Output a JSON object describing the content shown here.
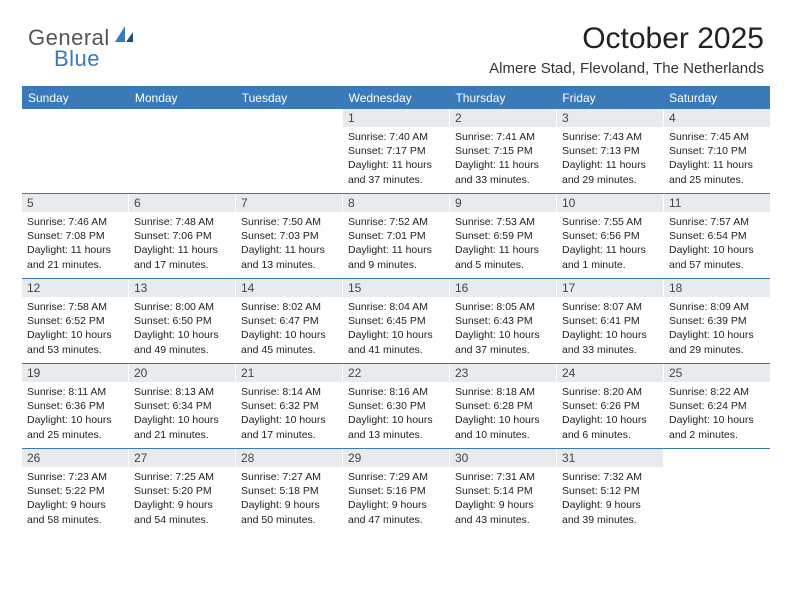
{
  "logo": {
    "text_general": "General",
    "text_blue": "Blue"
  },
  "header": {
    "month_title": "October 2025",
    "location": "Almere Stad, Flevoland, The Netherlands"
  },
  "colors": {
    "brand_blue": "#3a7ab8",
    "header_bg": "#3a7ab8",
    "header_text": "#ffffff",
    "daynum_bg": "#e8ebee",
    "body_text": "#222222",
    "page_bg": "#ffffff"
  },
  "day_headers": [
    "Sunday",
    "Monday",
    "Tuesday",
    "Wednesday",
    "Thursday",
    "Friday",
    "Saturday"
  ],
  "weeks": [
    [
      {
        "blank": true
      },
      {
        "blank": true
      },
      {
        "blank": true
      },
      {
        "day": "1",
        "sunrise": "Sunrise: 7:40 AM",
        "sunset": "Sunset: 7:17 PM",
        "daylight": "Daylight: 11 hours and 37 minutes."
      },
      {
        "day": "2",
        "sunrise": "Sunrise: 7:41 AM",
        "sunset": "Sunset: 7:15 PM",
        "daylight": "Daylight: 11 hours and 33 minutes."
      },
      {
        "day": "3",
        "sunrise": "Sunrise: 7:43 AM",
        "sunset": "Sunset: 7:13 PM",
        "daylight": "Daylight: 11 hours and 29 minutes."
      },
      {
        "day": "4",
        "sunrise": "Sunrise: 7:45 AM",
        "sunset": "Sunset: 7:10 PM",
        "daylight": "Daylight: 11 hours and 25 minutes."
      }
    ],
    [
      {
        "day": "5",
        "sunrise": "Sunrise: 7:46 AM",
        "sunset": "Sunset: 7:08 PM",
        "daylight": "Daylight: 11 hours and 21 minutes."
      },
      {
        "day": "6",
        "sunrise": "Sunrise: 7:48 AM",
        "sunset": "Sunset: 7:06 PM",
        "daylight": "Daylight: 11 hours and 17 minutes."
      },
      {
        "day": "7",
        "sunrise": "Sunrise: 7:50 AM",
        "sunset": "Sunset: 7:03 PM",
        "daylight": "Daylight: 11 hours and 13 minutes."
      },
      {
        "day": "8",
        "sunrise": "Sunrise: 7:52 AM",
        "sunset": "Sunset: 7:01 PM",
        "daylight": "Daylight: 11 hours and 9 minutes."
      },
      {
        "day": "9",
        "sunrise": "Sunrise: 7:53 AM",
        "sunset": "Sunset: 6:59 PM",
        "daylight": "Daylight: 11 hours and 5 minutes."
      },
      {
        "day": "10",
        "sunrise": "Sunrise: 7:55 AM",
        "sunset": "Sunset: 6:56 PM",
        "daylight": "Daylight: 11 hours and 1 minute."
      },
      {
        "day": "11",
        "sunrise": "Sunrise: 7:57 AM",
        "sunset": "Sunset: 6:54 PM",
        "daylight": "Daylight: 10 hours and 57 minutes."
      }
    ],
    [
      {
        "day": "12",
        "sunrise": "Sunrise: 7:58 AM",
        "sunset": "Sunset: 6:52 PM",
        "daylight": "Daylight: 10 hours and 53 minutes."
      },
      {
        "day": "13",
        "sunrise": "Sunrise: 8:00 AM",
        "sunset": "Sunset: 6:50 PM",
        "daylight": "Daylight: 10 hours and 49 minutes."
      },
      {
        "day": "14",
        "sunrise": "Sunrise: 8:02 AM",
        "sunset": "Sunset: 6:47 PM",
        "daylight": "Daylight: 10 hours and 45 minutes."
      },
      {
        "day": "15",
        "sunrise": "Sunrise: 8:04 AM",
        "sunset": "Sunset: 6:45 PM",
        "daylight": "Daylight: 10 hours and 41 minutes."
      },
      {
        "day": "16",
        "sunrise": "Sunrise: 8:05 AM",
        "sunset": "Sunset: 6:43 PM",
        "daylight": "Daylight: 10 hours and 37 minutes."
      },
      {
        "day": "17",
        "sunrise": "Sunrise: 8:07 AM",
        "sunset": "Sunset: 6:41 PM",
        "daylight": "Daylight: 10 hours and 33 minutes."
      },
      {
        "day": "18",
        "sunrise": "Sunrise: 8:09 AM",
        "sunset": "Sunset: 6:39 PM",
        "daylight": "Daylight: 10 hours and 29 minutes."
      }
    ],
    [
      {
        "day": "19",
        "sunrise": "Sunrise: 8:11 AM",
        "sunset": "Sunset: 6:36 PM",
        "daylight": "Daylight: 10 hours and 25 minutes."
      },
      {
        "day": "20",
        "sunrise": "Sunrise: 8:13 AM",
        "sunset": "Sunset: 6:34 PM",
        "daylight": "Daylight: 10 hours and 21 minutes."
      },
      {
        "day": "21",
        "sunrise": "Sunrise: 8:14 AM",
        "sunset": "Sunset: 6:32 PM",
        "daylight": "Daylight: 10 hours and 17 minutes."
      },
      {
        "day": "22",
        "sunrise": "Sunrise: 8:16 AM",
        "sunset": "Sunset: 6:30 PM",
        "daylight": "Daylight: 10 hours and 13 minutes."
      },
      {
        "day": "23",
        "sunrise": "Sunrise: 8:18 AM",
        "sunset": "Sunset: 6:28 PM",
        "daylight": "Daylight: 10 hours and 10 minutes."
      },
      {
        "day": "24",
        "sunrise": "Sunrise: 8:20 AM",
        "sunset": "Sunset: 6:26 PM",
        "daylight": "Daylight: 10 hours and 6 minutes."
      },
      {
        "day": "25",
        "sunrise": "Sunrise: 8:22 AM",
        "sunset": "Sunset: 6:24 PM",
        "daylight": "Daylight: 10 hours and 2 minutes."
      }
    ],
    [
      {
        "day": "26",
        "sunrise": "Sunrise: 7:23 AM",
        "sunset": "Sunset: 5:22 PM",
        "daylight": "Daylight: 9 hours and 58 minutes."
      },
      {
        "day": "27",
        "sunrise": "Sunrise: 7:25 AM",
        "sunset": "Sunset: 5:20 PM",
        "daylight": "Daylight: 9 hours and 54 minutes."
      },
      {
        "day": "28",
        "sunrise": "Sunrise: 7:27 AM",
        "sunset": "Sunset: 5:18 PM",
        "daylight": "Daylight: 9 hours and 50 minutes."
      },
      {
        "day": "29",
        "sunrise": "Sunrise: 7:29 AM",
        "sunset": "Sunset: 5:16 PM",
        "daylight": "Daylight: 9 hours and 47 minutes."
      },
      {
        "day": "30",
        "sunrise": "Sunrise: 7:31 AM",
        "sunset": "Sunset: 5:14 PM",
        "daylight": "Daylight: 9 hours and 43 minutes."
      },
      {
        "day": "31",
        "sunrise": "Sunrise: 7:32 AM",
        "sunset": "Sunset: 5:12 PM",
        "daylight": "Daylight: 9 hours and 39 minutes."
      },
      {
        "blank": true
      }
    ]
  ]
}
